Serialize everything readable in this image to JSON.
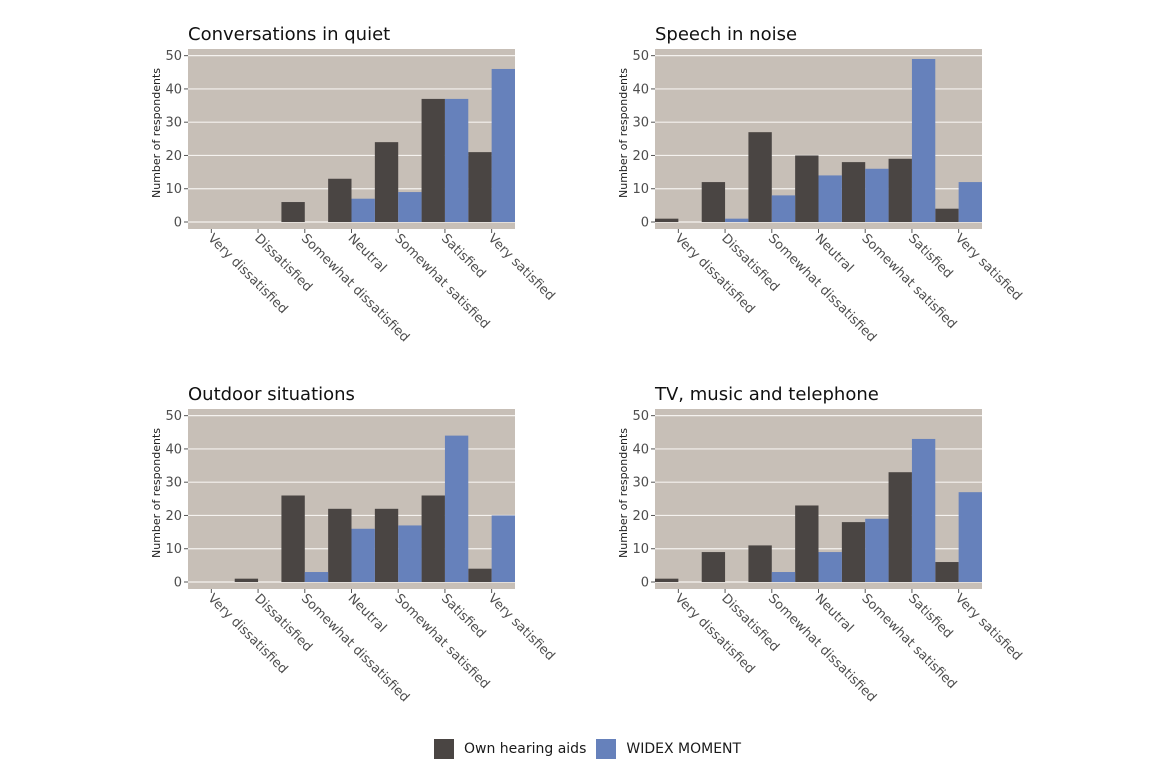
{
  "chart_data": [
    {
      "type": "bar",
      "title": "Conversations in quiet",
      "ylabel": "Number of respondents",
      "xlabel": "",
      "ylim": [
        0,
        52
      ],
      "yticks": [
        0,
        10,
        20,
        30,
        40,
        50
      ],
      "grid": true,
      "categories": [
        "Very dissatisfied",
        "Dissatisfied",
        "Somewhat dissatisfied",
        "Neutral",
        "Somewhat satisfied",
        "Satisfied",
        "Very satisfied"
      ],
      "series": [
        {
          "name": "Own hearing aids",
          "values": [
            0,
            0,
            6,
            13,
            24,
            37,
            21
          ]
        },
        {
          "name": "WIDEX MOMENT",
          "values": [
            0,
            0,
            0,
            7,
            9,
            37,
            46
          ]
        }
      ]
    },
    {
      "type": "bar",
      "title": "Speech in noise",
      "ylabel": "Number of respondents",
      "xlabel": "",
      "ylim": [
        0,
        52
      ],
      "yticks": [
        0,
        10,
        20,
        30,
        40,
        50
      ],
      "grid": true,
      "categories": [
        "Very dissatisfied",
        "Dissatisfied",
        "Somewhat dissatisfied",
        "Neutral",
        "Somewhat satisfied",
        "Satisfied",
        "Very satisfied"
      ],
      "series": [
        {
          "name": "Own hearing aids",
          "values": [
            1,
            12,
            27,
            20,
            18,
            19,
            4
          ]
        },
        {
          "name": "WIDEX MOMENT",
          "values": [
            0,
            1,
            8,
            14,
            16,
            49,
            12
          ]
        }
      ]
    },
    {
      "type": "bar",
      "title": "Outdoor situations",
      "ylabel": "Number of respondents",
      "xlabel": "",
      "ylim": [
        0,
        52
      ],
      "yticks": [
        0,
        10,
        20,
        30,
        40,
        50
      ],
      "grid": true,
      "categories": [
        "Very dissatisfied",
        "Dissatisfied",
        "Somewhat dissatisfied",
        "Neutral",
        "Somewhat satisfied",
        "Satisfied",
        "Very satisfied"
      ],
      "series": [
        {
          "name": "Own hearing aids",
          "values": [
            0,
            1,
            26,
            22,
            22,
            26,
            4
          ]
        },
        {
          "name": "WIDEX MOMENT",
          "values": [
            0,
            0,
            3,
            16,
            17,
            44,
            20
          ]
        }
      ]
    },
    {
      "type": "bar",
      "title": "TV, music and telephone",
      "ylabel": "Number of respondents",
      "xlabel": "",
      "ylim": [
        0,
        52
      ],
      "yticks": [
        0,
        10,
        20,
        30,
        40,
        50
      ],
      "grid": true,
      "categories": [
        "Very dissatisfied",
        "Dissatisfied",
        "Somewhat dissatisfied",
        "Neutral",
        "Somewhat satisfied",
        "Satisfied",
        "Very satisfied"
      ],
      "series": [
        {
          "name": "Own hearing aids",
          "values": [
            1,
            9,
            11,
            23,
            18,
            33,
            6
          ]
        },
        {
          "name": "WIDEX MOMENT",
          "values": [
            0,
            0,
            3,
            9,
            19,
            43,
            27
          ]
        }
      ]
    }
  ],
  "legend": {
    "position": "bottom",
    "items": [
      {
        "label": "Own hearing aids",
        "color": "#4a4543"
      },
      {
        "label": "WIDEX MOMENT",
        "color": "#6681bb"
      }
    ]
  },
  "colors": {
    "panel_background": "#c7bfb7",
    "gridline": "#f5f2ef",
    "own": "#4a4543",
    "widex": "#6681bb"
  }
}
